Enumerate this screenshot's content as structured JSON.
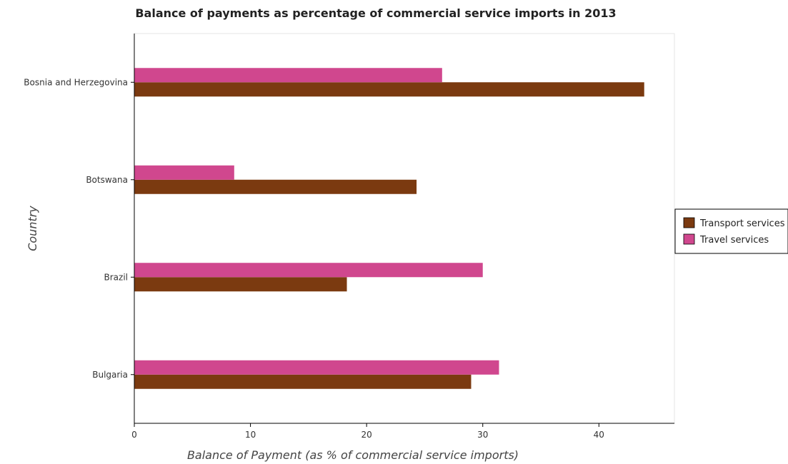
{
  "chart_data": {
    "type": "bar",
    "orientation": "horizontal",
    "title": "Balance of payments as percentage of commercial service imports in 2013",
    "xlabel": "Balance of Payment (as % of commercial service imports)",
    "ylabel": "Country",
    "categories": [
      "Bosnia and Herzegovina",
      "Botswana",
      "Brazil",
      "Bulgaria"
    ],
    "series": [
      {
        "name": "Transport services",
        "color": "#7b3a10",
        "values": [
          43.9,
          24.3,
          18.3,
          29.0
        ]
      },
      {
        "name": "Travel services",
        "color": "#d0478e",
        "values": [
          26.5,
          8.6,
          30.0,
          31.4
        ]
      }
    ],
    "xlim": [
      0,
      46.5
    ],
    "xticks": [
      0,
      10,
      20,
      30,
      40
    ],
    "grid": false,
    "legend_position": "right"
  }
}
